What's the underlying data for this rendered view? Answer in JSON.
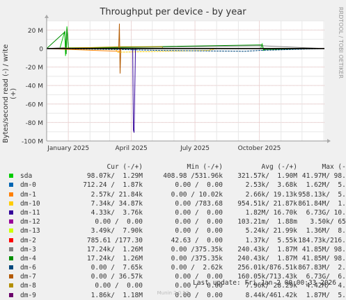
{
  "title": "Throughput per device - by year",
  "side_label": "RRDTOOL / TOBI OETIKER",
  "updated": "Last update: Fri Jan  2 00:00:33 2026",
  "footer": "Munin 2.0.57",
  "legend_headers": {
    "cur": "Cur (-/+)",
    "min": "Min (-/+)",
    "avg": "Avg (-/+)",
    "max": "Max (-/+)"
  },
  "legend": [
    {
      "name": "sda",
      "color": "#00cc00",
      "cur": "98.07k/  1.29M",
      "min": "408.98 /531.96k",
      "avg": "321.57k/  1.90M",
      "max": "41.97M/ 98.59M"
    },
    {
      "name": "dm-0",
      "color": "#0066b3",
      "cur": "712.24 /  1.87k",
      "min": "0.00 /  0.00",
      "avg": "2.53k/  3.68k",
      "max": "1.62M/  5.17M"
    },
    {
      "name": "dm-1",
      "color": "#ff8000",
      "cur": "2.57k/ 21.84k",
      "min": "0.00 / 10.02k",
      "avg": "2.66k/ 19.13k",
      "max": "958.13k/  5.02M"
    },
    {
      "name": "dm-10",
      "color": "#ffcc00",
      "cur": "7.34k/ 34.87k",
      "min": "0.00 /783.68",
      "avg": "954.51k/ 21.87k",
      "max": "861.84M/  1.82M"
    },
    {
      "name": "dm-11",
      "color": "#330099",
      "cur": "4.33k/  3.76k",
      "min": "0.00 /  0.00",
      "avg": "1.82M/ 16.70k",
      "max": "6.73G/ 10.90M"
    },
    {
      "name": "dm-12",
      "color": "#990099",
      "cur": "0.00 /  0.00",
      "min": "0.00 /  0.00",
      "avg": "103.21m/  1.88m",
      "max": "3.50k/ 65.27"
    },
    {
      "name": "dm-13",
      "color": "#ccff00",
      "cur": "3.49k/  7.90k",
      "min": "0.00 /  0.00",
      "avg": "5.24k/ 21.99k",
      "max": "1.36M/  8.27M"
    },
    {
      "name": "dm-2",
      "color": "#ff0000",
      "cur": "785.61 /177.30",
      "min": "42.63 /  0.00",
      "avg": "1.37k/  5.55k",
      "max": "184.73k/216.81k"
    },
    {
      "name": "dm-3",
      "color": "#808080",
      "cur": "17.24k/  1.26M",
      "min": "0.00 /375.35k",
      "avg": "240.43k/  1.87M",
      "max": "41.85M/ 98.56M"
    },
    {
      "name": "dm-4",
      "color": "#008f00",
      "cur": "17.24k/  1.26M",
      "min": "0.00 /375.35k",
      "avg": "240.43k/  1.87M",
      "max": "41.85M/ 98.56M"
    },
    {
      "name": "dm-6",
      "color": "#00487d",
      "cur": "0.00 /  7.65k",
      "min": "0.00 /  2.62k",
      "avg": "256.01k/876.51k",
      "max": "867.83M/  2.90M"
    },
    {
      "name": "dm-7",
      "color": "#b35a00",
      "cur": "0.00 / 36.57k",
      "min": "0.00 /  0.00",
      "avg": "160.05k/713.43k",
      "max": "6.73G/  6.73G"
    },
    {
      "name": "dm-8",
      "color": "#b38f00",
      "cur": "0.00 /  0.00",
      "min": "0.00 /  0.00",
      "avg": "7.96k/ 28.29k",
      "max": "4.42M/  4.57M"
    },
    {
      "name": "dm-9",
      "color": "#6b006b",
      "cur": "1.86k/  1.18M",
      "min": "0.00 /  0.00",
      "avg": "8.44k/461.42k",
      "max": "1.87M/  5.52M"
    }
  ],
  "chart_data": {
    "type": "line",
    "title": "Throughput per device - by year",
    "ylabel": "Bytes/second read (-) / write (+)",
    "ylim": [
      -100,
      30
    ],
    "y_unit": "M",
    "y_ticks": [
      20,
      0,
      -20,
      -40,
      -60,
      -80,
      -100
    ],
    "y_tick_labels": [
      "20 M",
      "0",
      "-20 M",
      "-40 M",
      "-60 M",
      "-80 M",
      "-100 M"
    ],
    "xlim": [
      "2024-12-01",
      "2026-01-02"
    ],
    "x_ticks": [
      "2025-01-01",
      "2025-04-01",
      "2025-07-01",
      "2025-10-01"
    ],
    "x_tick_labels": [
      "January 2025",
      "April 2025",
      "July 2025",
      "October 2025"
    ],
    "grid": true,
    "series": [
      {
        "name": "sda",
        "color": "#00cc00",
        "points": [
          [
            "2024-12-01",
            0
          ],
          [
            "2024-12-20",
            0.5
          ],
          [
            "2024-12-27",
            19
          ],
          [
            "2024-12-28",
            -8
          ],
          [
            "2024-12-30",
            24
          ],
          [
            "2025-01-01",
            1
          ],
          [
            "2025-03-15",
            0.5
          ],
          [
            "2025-10-03",
            0
          ],
          [
            "2025-10-05",
            5
          ],
          [
            "2025-10-07",
            -2
          ],
          [
            "2025-10-10",
            0
          ],
          [
            "2026-01-02",
            0
          ]
        ]
      },
      {
        "name": "dm-3",
        "color": "#808080",
        "points": [
          [
            "2024-12-01",
            0
          ],
          [
            "2024-12-26",
            1
          ],
          [
            "2025-01-01",
            0.5
          ],
          [
            "2025-10-05",
            3
          ],
          [
            "2026-01-02",
            0
          ]
        ]
      },
      {
        "name": "dm-4",
        "color": "#008f00",
        "points": [
          [
            "2024-12-01",
            0
          ],
          [
            "2024-12-27",
            18
          ],
          [
            "2024-12-29",
            -6
          ],
          [
            "2024-12-30",
            22
          ],
          [
            "2025-01-01",
            0.5
          ],
          [
            "2025-10-05",
            4
          ],
          [
            "2025-10-07",
            -1
          ],
          [
            "2026-01-02",
            0
          ]
        ]
      },
      {
        "name": "dm-7",
        "color": "#b35a00",
        "points": [
          [
            "2024-12-01",
            0
          ],
          [
            "2025-03-14",
            0
          ],
          [
            "2025-03-15",
            27
          ],
          [
            "2025-03-16",
            -27
          ],
          [
            "2025-03-17",
            0
          ],
          [
            "2026-01-02",
            0
          ]
        ]
      },
      {
        "name": "dm-10",
        "color": "#ffcc00",
        "points": [
          [
            "2024-12-01",
            0
          ],
          [
            "2025-03-10",
            -1
          ],
          [
            "2025-03-12",
            -4
          ],
          [
            "2025-07-20",
            -2
          ],
          [
            "2025-08-01",
            0
          ],
          [
            "2026-01-02",
            0
          ]
        ]
      },
      {
        "name": "dm-8",
        "color": "#b38f00",
        "points": [
          [
            "2024-12-01",
            0
          ],
          [
            "2025-03-18",
            2
          ],
          [
            "2025-05-15",
            2
          ],
          [
            "2025-05-16",
            0
          ],
          [
            "2026-01-02",
            0
          ]
        ]
      },
      {
        "name": "dm-6",
        "color": "#00487d",
        "points": [
          [
            "2024-12-01",
            0
          ],
          [
            "2025-03-18",
            -1
          ],
          [
            "2025-05-10",
            -2
          ],
          [
            "2025-09-10",
            -3
          ],
          [
            "2025-10-01",
            -2
          ],
          [
            "2026-01-02",
            0
          ]
        ]
      },
      {
        "name": "dm-11",
        "color": "#330099",
        "points": [
          [
            "2024-12-01",
            0
          ],
          [
            "2025-04-03",
            0
          ],
          [
            "2025-04-04",
            -88
          ],
          [
            "2025-04-05",
            -91
          ],
          [
            "2025-04-06",
            -46
          ],
          [
            "2025-04-07",
            0
          ],
          [
            "2026-01-02",
            0
          ]
        ]
      },
      {
        "name": "dm-1",
        "color": "#ff8000",
        "points": [
          [
            "2024-12-01",
            0
          ],
          [
            "2025-03-15",
            -3
          ],
          [
            "2025-03-17",
            0
          ],
          [
            "2026-01-02",
            0
          ]
        ]
      }
    ]
  }
}
